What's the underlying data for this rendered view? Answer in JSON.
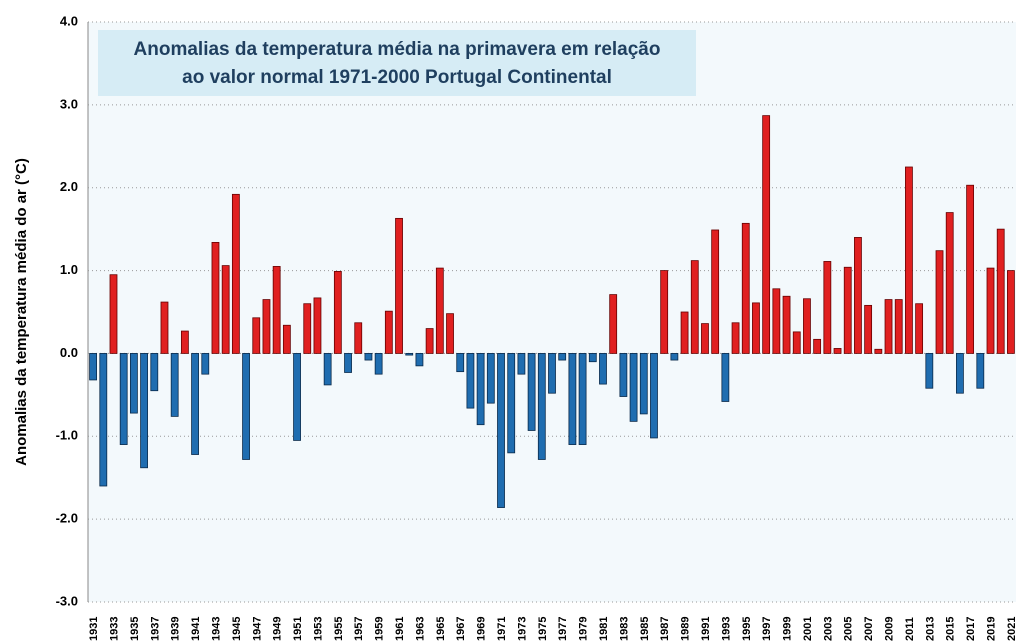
{
  "chart_data": {
    "type": "bar",
    "title": [
      "Anomalias da temperatura média na primavera em relação",
      "ao valor normal 1971-2000  Portugal Continental"
    ],
    "y_label": "Anomalias da temperatura média do ar (°C)",
    "categories": [
      "1931",
      null,
      "1933",
      null,
      "1935",
      null,
      "1937",
      null,
      "1939",
      null,
      "1941",
      null,
      "1943",
      null,
      "1945",
      null,
      "1947",
      null,
      "1949",
      null,
      "1951",
      null,
      "1953",
      null,
      "1955",
      null,
      "1957",
      null,
      "1959",
      null,
      "1961",
      null,
      "1963",
      null,
      "1965",
      null,
      "1967",
      null,
      "1969",
      null,
      "1971",
      null,
      "1973",
      null,
      "1975",
      null,
      "1977",
      null,
      "1979",
      null,
      "1981",
      null,
      "1983",
      null,
      "1985",
      null,
      "1987",
      null,
      "1989",
      null,
      "1991",
      null,
      "1993",
      null,
      "1995",
      null,
      "1997",
      null,
      "1999",
      null,
      "2001",
      null,
      "2003",
      null,
      "2005",
      null,
      "2007",
      null,
      "2009",
      null,
      "2011",
      null,
      "2013",
      null,
      "2015",
      null,
      "2017",
      null,
      "2019",
      null,
      "2021"
    ],
    "values": [
      -0.32,
      -1.6,
      0.95,
      -1.1,
      -0.72,
      -1.38,
      -0.45,
      0.62,
      -0.76,
      0.27,
      -1.22,
      -0.25,
      1.34,
      1.06,
      1.92,
      -1.28,
      0.43,
      0.65,
      1.05,
      0.34,
      -1.05,
      0.6,
      0.67,
      -0.38,
      0.99,
      -0.23,
      0.37,
      -0.08,
      -0.25,
      0.51,
      1.63,
      -0.02,
      -0.15,
      0.3,
      1.03,
      0.48,
      -0.22,
      -0.66,
      -0.86,
      -0.6,
      -1.86,
      -1.2,
      -0.25,
      -0.93,
      -1.28,
      -0.48,
      -0.08,
      -1.1,
      -1.1,
      -0.1,
      -0.37,
      0.71,
      -0.52,
      -0.82,
      -0.73,
      -1.02,
      1.0,
      -0.08,
      0.5,
      1.12,
      0.36,
      1.49,
      -0.58,
      0.37,
      1.57,
      0.61,
      2.87,
      0.78,
      0.69,
      0.26,
      0.66,
      0.17,
      1.11,
      0.06,
      1.04,
      1.4,
      0.58,
      0.05,
      0.65,
      0.65,
      2.25,
      0.6,
      -0.42,
      1.24,
      1.7,
      -0.48,
      2.03,
      -0.42,
      1.03,
      1.5,
      1.0
    ],
    "positive_color": "#e02020",
    "negative_color": "#1f6db0",
    "ylim": [
      -3,
      4
    ],
    "yticks": [
      {
        "value": -3,
        "label": "-3.0"
      },
      {
        "value": -2,
        "label": "-2.0"
      },
      {
        "value": -1,
        "label": "-1.0"
      },
      {
        "value": 0,
        "label": "0.0"
      },
      {
        "value": 1,
        "label": "1.0"
      },
      {
        "value": 2,
        "label": "2.0"
      },
      {
        "value": 3,
        "label": "3.0"
      },
      {
        "value": 4,
        "label": "4.0"
      }
    ],
    "grid": true
  }
}
